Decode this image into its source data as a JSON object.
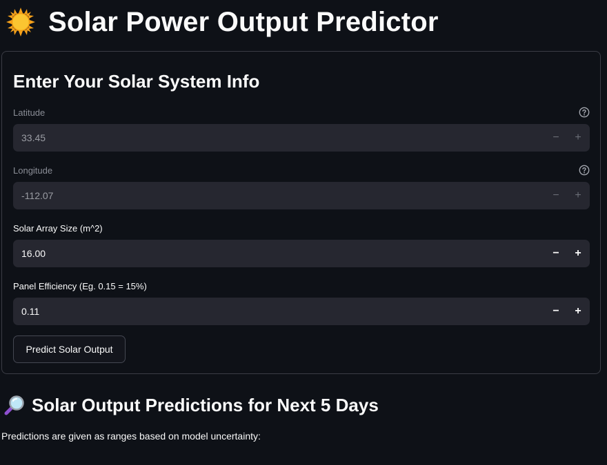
{
  "app": {
    "title": "Solar Power Output Predictor",
    "icon": "sun-icon"
  },
  "form": {
    "heading": "Enter Your Solar System Info",
    "fields": [
      {
        "label": "Latitude",
        "value": "33.45",
        "disabled": true,
        "has_help": true
      },
      {
        "label": "Longitude",
        "value": "-112.07",
        "disabled": true,
        "has_help": true
      },
      {
        "label": "Solar Array Size (m^2)",
        "value": "16.00",
        "disabled": false,
        "has_help": false
      },
      {
        "label": "Panel Efficiency (Eg. 0.15 = 15%)",
        "value": "0.11",
        "disabled": false,
        "has_help": false
      }
    ],
    "stepper": {
      "minus": "−",
      "plus": "+"
    },
    "submit_label": "Predict Solar Output"
  },
  "predictions": {
    "icon": "magnifier-icon",
    "heading": "Solar Output Predictions for Next 5 Days",
    "caption": "Predictions are given as ranges based on model uncertainty:"
  },
  "colors": {
    "background": "#0e1117",
    "input_bg": "#262730",
    "border": "#3b3d46",
    "text": "#fafafa",
    "muted_text": "#8b8e97"
  }
}
